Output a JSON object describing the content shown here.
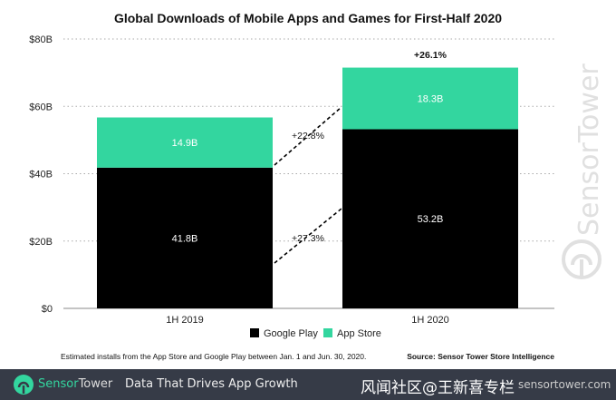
{
  "chart_data": {
    "type": "bar",
    "stacked": true,
    "title": "Global Downloads of Mobile Apps and Games for First-Half 2020",
    "categories": [
      "1H 2019",
      "1H 2020"
    ],
    "series": [
      {
        "name": "Google Play",
        "values": [
          41.8,
          53.2
        ],
        "labels": [
          "41.8B",
          "53.2B"
        ],
        "color": "#000000"
      },
      {
        "name": "App Store",
        "values": [
          14.9,
          18.3
        ],
        "labels": [
          "14.9B",
          "18.3B"
        ],
        "color": "#33d69f"
      }
    ],
    "ylim": [
      0,
      80
    ],
    "yticks": [
      "$0",
      "$20B",
      "$40B",
      "$60B",
      "$80B"
    ],
    "grid": true,
    "legend": "bottom",
    "annotations": {
      "total_growth": "+26.1%",
      "app_store_growth": "+22.8%",
      "google_play_growth": "+27.3%"
    },
    "footnote": "Estimated installs from the App Store and Google Play between Jan. 1 and Jun. 30, 2020.",
    "source": "Source: Sensor Tower Store Intelligence"
  },
  "watermark": "SensorTower",
  "footer": {
    "brand_sensor": "Sensor",
    "brand_tower": "Tower",
    "tagline": "Data That Drives App Growth",
    "url": "sensortower.com",
    "overlay_text": "风闻社区@王新喜专栏"
  },
  "colors": {
    "brand": "#33d69f",
    "footer_bg": "#363b47"
  }
}
